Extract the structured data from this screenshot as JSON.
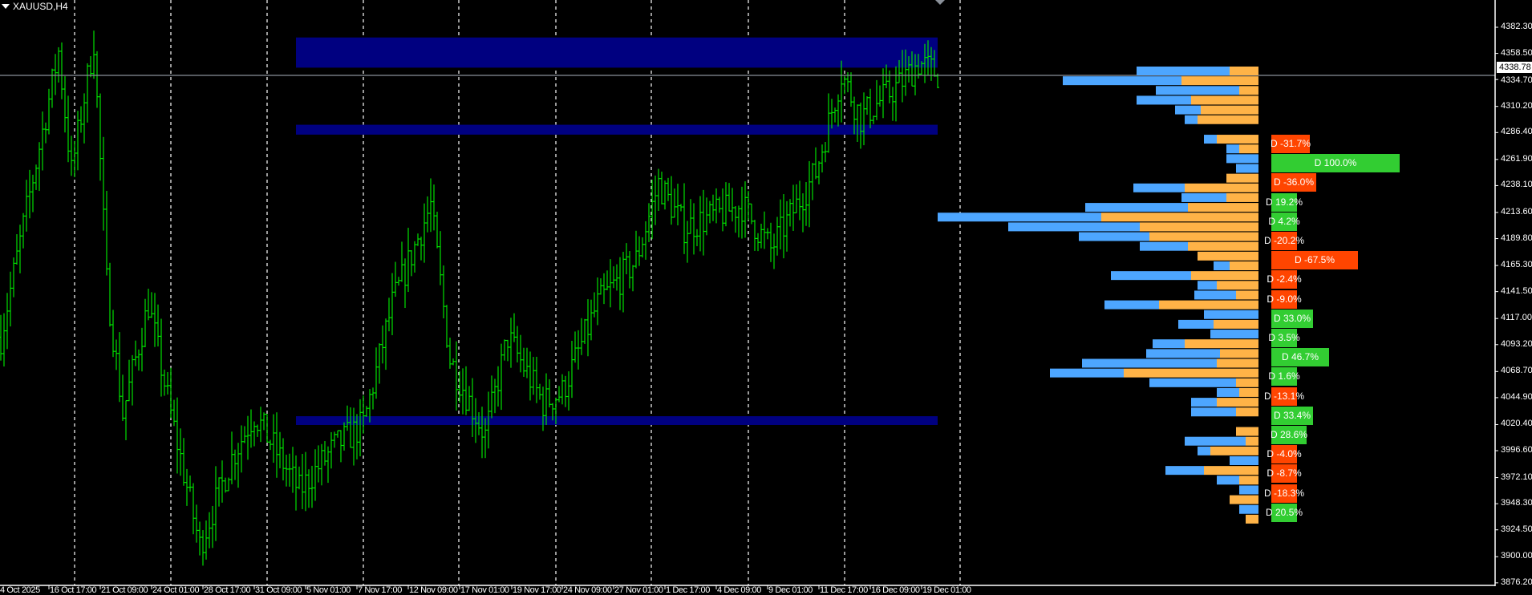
{
  "header": {
    "symbol_label": "XAUUSD,H4"
  },
  "colors": {
    "background": "#000000",
    "bars": "#00e000",
    "zones": "#000080",
    "profile_buy": "#4da6ff",
    "profile_sell": "#ffb347",
    "delta_positive": "#32cd32",
    "delta_negative": "#ff4500",
    "price_line": "#8a9099",
    "grid": "#ffffff"
  },
  "chart_data": {
    "type": "ohlc",
    "symbol": "XAUUSD",
    "timeframe": "H4",
    "ylim": [
      3876.2,
      4382.3
    ],
    "current_price": "4338.78",
    "y_ticks": [
      "4382.30",
      "4358.50",
      "4334.70",
      "4310.20",
      "4286.40",
      "4261.90",
      "4238.10",
      "4213.60",
      "4189.80",
      "4165.30",
      "4141.50",
      "4117.00",
      "4093.20",
      "4068.70",
      "4044.90",
      "4020.40",
      "3996.60",
      "3972.10",
      "3948.30",
      "3924.50",
      "3900.00",
      "3876.20"
    ],
    "x_ticks": [
      "4 Oct 2025",
      "16 Oct 17:00",
      "21 Oct 09:00",
      "24 Oct 01:00",
      "28 Oct 17:00",
      "31 Oct 09:00",
      "5 Nov 01:00",
      "7 Nov 17:00",
      "12 Nov 09:00",
      "17 Nov 01:00",
      "19 Nov 17:00",
      "24 Nov 09:00",
      "27 Nov 01:00",
      "1 Dec 17:00",
      "4 Dec 09:00",
      "9 Dec 01:00",
      "11 Dec 17:00",
      "16 Dec 09:00",
      "19 Dec 01:00"
    ],
    "price_path_approx": [
      [
        0,
        4100
      ],
      [
        18,
        4360
      ],
      [
        22,
        4250
      ],
      [
        29,
        4370
      ],
      [
        33,
        4150
      ],
      [
        38,
        4030
      ],
      [
        46,
        4130
      ],
      [
        53,
        4030
      ],
      [
        62,
        3910
      ],
      [
        72,
        3990
      ],
      [
        79,
        4030
      ],
      [
        93,
        3960
      ],
      [
        104,
        4000
      ],
      [
        113,
        4020
      ],
      [
        122,
        4130
      ],
      [
        134,
        4220
      ],
      [
        140,
        4080
      ],
      [
        151,
        4010
      ],
      [
        158,
        4100
      ],
      [
        169,
        4040
      ],
      [
        175,
        4050
      ],
      [
        186,
        4130
      ],
      [
        198,
        4170
      ],
      [
        205,
        4240
      ],
      [
        213,
        4200
      ],
      [
        231,
        4220
      ],
      [
        240,
        4180
      ],
      [
        254,
        4250
      ],
      [
        262,
        4340
      ],
      [
        268,
        4300
      ],
      [
        280,
        4330
      ],
      [
        286,
        4350
      ],
      [
        292,
        4340
      ]
    ],
    "zones": [
      {
        "from": 4345.5,
        "to": 4373.0
      },
      {
        "from": 4284.5,
        "to": 4293.5
      },
      {
        "from": 4020.0,
        "to": 4028.0
      }
    ],
    "volume_profile": [
      [
        29,
        9
      ],
      [
        37,
        24
      ],
      [
        26,
        6
      ],
      [
        17,
        21
      ],
      [
        8,
        18
      ],
      [
        4,
        19
      ],
      [
        0,
        0
      ],
      [
        4,
        13
      ],
      [
        4,
        6
      ],
      [
        10,
        0
      ],
      [
        7,
        0
      ],
      [
        0,
        10
      ],
      [
        16,
        23
      ],
      [
        14,
        10
      ],
      [
        32,
        22
      ],
      [
        51,
        49
      ],
      [
        41,
        37
      ],
      [
        22,
        34
      ],
      [
        15,
        22
      ],
      [
        0,
        19
      ],
      [
        5,
        9
      ],
      [
        25,
        21
      ],
      [
        6,
        13
      ],
      [
        13,
        7
      ],
      [
        17,
        31
      ],
      [
        17,
        0
      ],
      [
        11,
        14
      ],
      [
        15,
        0
      ],
      [
        10,
        23
      ],
      [
        23,
        12
      ],
      [
        42,
        13
      ],
      [
        23,
        42
      ],
      [
        27,
        7
      ],
      [
        7,
        6
      ],
      [
        8,
        13
      ],
      [
        14,
        7
      ],
      [
        0,
        0
      ],
      [
        0,
        7
      ],
      [
        19,
        4
      ],
      [
        4,
        15
      ],
      [
        9,
        0
      ],
      [
        12,
        17
      ],
      [
        7,
        6
      ],
      [
        6,
        0
      ],
      [
        0,
        9
      ],
      [
        6,
        0
      ],
      [
        0,
        4
      ]
    ],
    "deltas": [
      "D -31.7%",
      "D 100.0%",
      "D -36.0%",
      "D 19.2%",
      "D 4.2%",
      "D -20.2%",
      "D -67.5%",
      "D -2.4%",
      "D -9.0%",
      "D 33.0%",
      "D 3.5%",
      "D 46.7%",
      "D 1.6%",
      "D -13.1%",
      "D 33.4%",
      "D 28.6%",
      "D -4.0%",
      "D -8.7%",
      "D -18.3%",
      "D 20.5%"
    ],
    "delta_values": [
      -31.7,
      100.0,
      -36.0,
      19.2,
      4.2,
      -20.2,
      -67.5,
      -2.4,
      -9.0,
      33.0,
      3.5,
      46.7,
      1.6,
      -13.1,
      33.4,
      28.6,
      -4.0,
      -8.7,
      -18.3,
      20.5
    ]
  }
}
